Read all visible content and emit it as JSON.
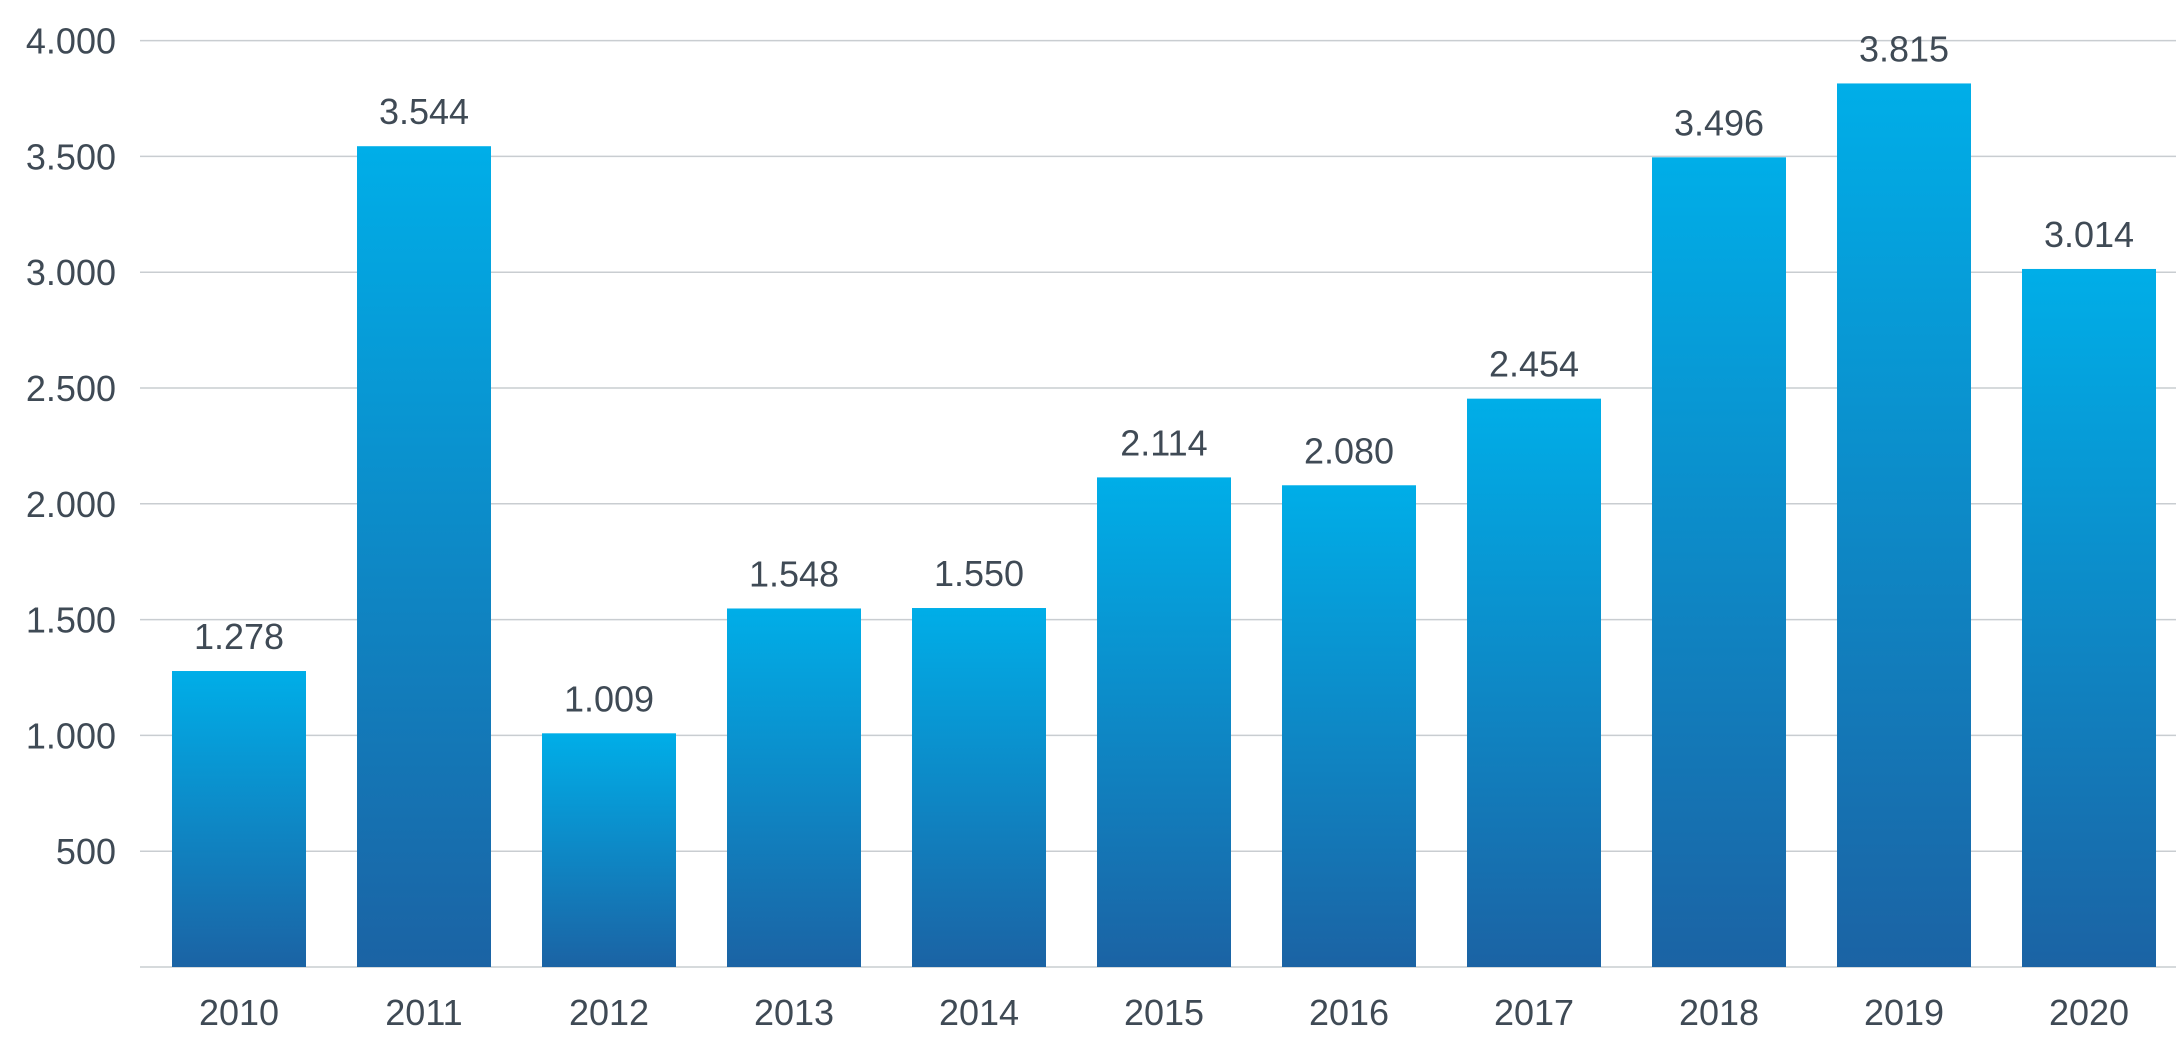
{
  "chart_data": {
    "type": "bar",
    "categories": [
      "2010",
      "2011",
      "2012",
      "2013",
      "2014",
      "2015",
      "2016",
      "2017",
      "2018",
      "2019",
      "2020"
    ],
    "values": [
      1278,
      3544,
      1009,
      1548,
      1550,
      2114,
      2080,
      2454,
      3496,
      3815,
      3014
    ],
    "value_labels": [
      "1.278",
      "3.544",
      "1.009",
      "1.548",
      "1.550",
      "2.114",
      "2.080",
      "2.454",
      "3.496",
      "3.815",
      "3.014"
    ],
    "ylim": [
      0,
      4000
    ],
    "yticks": [
      500,
      1000,
      1500,
      2000,
      2500,
      3000,
      3500,
      4000
    ],
    "ytick_labels": [
      "500",
      "1.000",
      "1.500",
      "2.000",
      "2.500",
      "3.000",
      "3.500",
      "4.000"
    ],
    "grid": true,
    "legend": "none",
    "colors": {
      "bar_top": "#00aee8",
      "bar_bottom": "#1b63a4",
      "grid": "#c9cdd1",
      "text": "#3f4a55"
    }
  }
}
